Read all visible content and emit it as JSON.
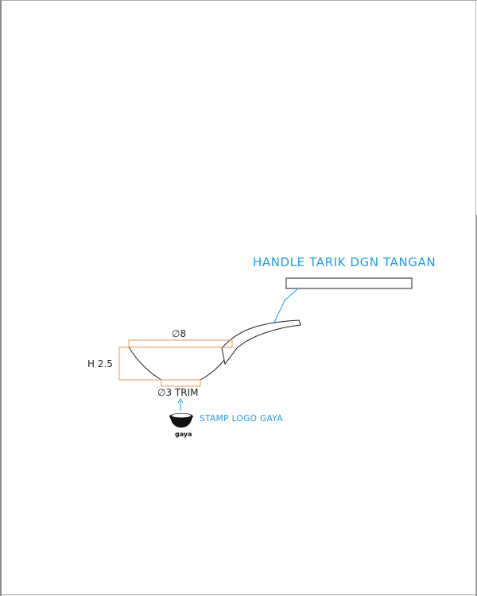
{
  "labels": {
    "handle": "HANDLE TARIK DGN TANGAN",
    "stamp": "STAMP LOGO GAYA",
    "diameter_top": "∅8",
    "height": "H 2.5",
    "diameter_bottom": "∅3 TRIM",
    "logo_word": "gaya"
  },
  "colors": {
    "annotation": "#1a9ee6",
    "dimension": "#e39a52",
    "outline": "#222222",
    "border": "#8a8a8a"
  },
  "icons": {
    "logo": "bowl-logo-icon",
    "arrow": "arrow-up-icon"
  }
}
